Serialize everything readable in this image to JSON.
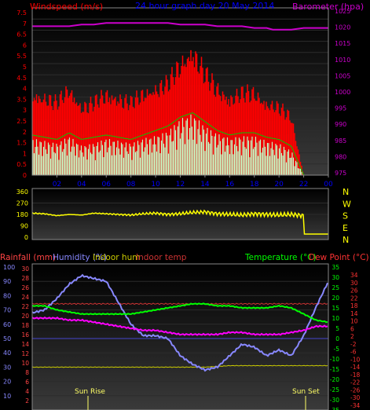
{
  "chart_data": [
    {
      "type": "bar",
      "title": "24 hour graph day  20 May 2014",
      "ylabel_left": "Windspeed (m/s)",
      "ylabel_right": "Barometer (hpa)",
      "colors": {
        "gust": "#ff0000",
        "speed": "#c8ffc8",
        "avg": "#00cc00",
        "barometer": "#cc00cc",
        "title": "#0000ff",
        "axis_left": "#ff0000",
        "axis_right": "#cc00cc",
        "xticks": "#0000ff"
      },
      "x_ticks": [
        "02",
        "04",
        "06",
        "08",
        "10",
        "12",
        "14",
        "16",
        "18",
        "20",
        "22",
        "00"
      ],
      "y_left_ticks": [
        "7.5",
        "7",
        "6.5",
        "6",
        "5.5",
        "5",
        "4.5",
        "4",
        "3.5",
        "3",
        "2.5",
        "2",
        "1.5",
        "1",
        "0.5",
        "0"
      ],
      "y_right_ticks": [
        "1025",
        "1020",
        "1015",
        "1010",
        "1005",
        "1000",
        "995",
        "990",
        "985",
        "980",
        "975"
      ],
      "ylim_left": [
        0,
        7.5
      ],
      "ylim_right": [
        975,
        1025
      ],
      "x_range_hours": [
        0,
        24
      ],
      "series": [
        {
          "name": "gust",
          "x": [
            0,
            1,
            2,
            3,
            4,
            5,
            6,
            7,
            8,
            9,
            10,
            11,
            12,
            13,
            14,
            15,
            16,
            17,
            18,
            19,
            20,
            21,
            22,
            23,
            24
          ],
          "values": [
            3.4,
            3.2,
            3.0,
            3.6,
            2.8,
            3.0,
            3.4,
            3.2,
            3.0,
            3.4,
            3.6,
            3.8,
            4.6,
            5.2,
            4.2,
            3.6,
            3.2,
            3.4,
            3.4,
            3.0,
            2.8,
            2.4,
            0,
            0,
            0
          ]
        },
        {
          "name": "speed",
          "x": [
            0,
            1,
            2,
            3,
            4,
            5,
            6,
            7,
            8,
            9,
            10,
            11,
            12,
            13,
            14,
            15,
            16,
            17,
            18,
            19,
            20,
            21,
            22,
            23,
            24
          ],
          "values": [
            1.5,
            1.4,
            1.3,
            1.6,
            1.2,
            1.3,
            1.5,
            1.4,
            1.3,
            1.5,
            1.6,
            1.8,
            2.3,
            2.5,
            2.0,
            1.7,
            1.5,
            1.6,
            1.6,
            1.4,
            1.3,
            1.0,
            0,
            0,
            0
          ]
        },
        {
          "name": "avg",
          "x": [
            0,
            1,
            2,
            3,
            4,
            5,
            6,
            7,
            8,
            9,
            10,
            11,
            12,
            13,
            14,
            15,
            16,
            17,
            18,
            19,
            20,
            21,
            22,
            23,
            24
          ],
          "values": [
            1.8,
            1.7,
            1.6,
            1.9,
            1.6,
            1.7,
            1.8,
            1.7,
            1.6,
            1.8,
            2.0,
            2.2,
            2.6,
            2.8,
            2.4,
            2.0,
            1.8,
            1.9,
            1.9,
            1.7,
            1.6,
            1.3,
            0,
            0,
            0
          ]
        },
        {
          "name": "barometer",
          "x": [
            0,
            2,
            3,
            4,
            5,
            6,
            7,
            8,
            9,
            10,
            11,
            12,
            13,
            14,
            15,
            16,
            17,
            18,
            19,
            19.5,
            20,
            21,
            22,
            23,
            24
          ],
          "values": [
            1019.5,
            1019.5,
            1019.5,
            1020,
            1020,
            1020.5,
            1020.5,
            1020.5,
            1020.5,
            1020.5,
            1020.5,
            1020,
            1020,
            1020,
            1019.5,
            1019.5,
            1019.5,
            1019,
            1019,
            1018.5,
            1018.5,
            1018.5,
            1019,
            1019,
            1019
          ]
        }
      ]
    },
    {
      "type": "line",
      "name": "Wind direction",
      "y_ticks": [
        "360",
        "270",
        "180",
        "90",
        "0"
      ],
      "ylim": [
        0,
        360
      ],
      "right_labels": [
        "N",
        "W",
        "S",
        "E",
        "N"
      ],
      "colors": {
        "line": "#ffff00",
        "axis": "#ffff00",
        "right": "#ffff00"
      },
      "x": [
        0,
        1,
        2,
        3,
        4,
        5,
        6,
        7,
        8,
        9,
        10,
        11,
        12,
        13,
        14,
        15,
        16,
        17,
        18,
        19,
        20,
        21,
        22,
        22.05,
        23,
        24
      ],
      "values": [
        190,
        185,
        170,
        180,
        175,
        190,
        185,
        180,
        175,
        185,
        190,
        180,
        185,
        195,
        200,
        185,
        180,
        175,
        185,
        180,
        175,
        180,
        170,
        25,
        25,
        25
      ]
    },
    {
      "type": "line",
      "title": "",
      "left_headers": [
        "Rainfall (mm)",
        "Humidity (%)",
        "Indoor hum",
        "Indoor temp"
      ],
      "right_headers": [
        "Temperature (°C)",
        "Dew Point (°C)"
      ],
      "colors": {
        "rain": "#ff4444",
        "humidity": "#8888ff",
        "indoor_hum": "#cccc00",
        "indoor_temp": "#cc3333",
        "temperature": "#00ff00",
        "dewpoint": "#ff00ff",
        "temp_axis": "#00ff00",
        "dew_axis": "#ff3333",
        "humidity_axis": "#8888ff",
        "rain_axis": "#ff4444"
      },
      "humidity_ticks": [
        "100",
        "90",
        "80",
        "70",
        "60",
        "50",
        "40",
        "30",
        "20",
        "10"
      ],
      "rain_ticks": [
        "30",
        "28",
        "26",
        "24",
        "22",
        "20",
        "18",
        "16",
        "14",
        "12",
        "10",
        "8",
        "6",
        "4",
        "2"
      ],
      "temp_ticks": [
        "35",
        "30",
        "25",
        "20",
        "15",
        "10",
        "5",
        "0",
        "-5",
        "-10",
        "-15",
        "-20",
        "-25",
        "-30",
        "-35"
      ],
      "dew_ticks": [
        "34",
        "30",
        "26",
        "22",
        "18",
        "14",
        "10",
        "6",
        "2",
        "-2",
        "-6",
        "-10",
        "-14",
        "-18",
        "-22",
        "-26",
        "-30",
        "-34"
      ],
      "annotations": [
        "Sun Rise",
        "Sun Set"
      ],
      "series": [
        {
          "name": "Temperature",
          "x": [
            0,
            1,
            2,
            3,
            4,
            5,
            6,
            7,
            8,
            9,
            10,
            11,
            12,
            13,
            14,
            15,
            16,
            17,
            18,
            19,
            20,
            21,
            22,
            23,
            24
          ],
          "values": [
            16,
            16,
            14,
            13,
            12,
            12,
            12,
            12,
            12,
            13,
            14,
            15,
            16,
            17,
            17,
            16,
            16,
            15,
            15,
            15,
            16,
            15,
            12,
            9,
            8
          ]
        },
        {
          "name": "Dew Point",
          "x": [
            0,
            1,
            2,
            3,
            4,
            5,
            6,
            7,
            8,
            9,
            10,
            11,
            12,
            13,
            14,
            15,
            16,
            17,
            18,
            19,
            20,
            21,
            22,
            23,
            24
          ],
          "values": [
            10,
            10,
            10,
            9,
            9,
            8,
            7,
            6,
            5,
            4,
            4,
            3,
            2,
            2,
            2,
            2,
            3,
            3,
            2,
            2,
            2,
            3,
            4,
            6,
            6
          ]
        },
        {
          "name": "Humidity",
          "x": [
            0,
            1,
            2,
            3,
            4,
            5,
            6,
            7,
            8,
            9,
            10,
            11,
            12,
            13,
            14,
            15,
            16,
            17,
            18,
            19,
            20,
            21,
            22,
            23,
            24
          ],
          "values": [
            68,
            70,
            78,
            88,
            94,
            92,
            90,
            75,
            60,
            52,
            52,
            50,
            38,
            32,
            28,
            30,
            38,
            46,
            44,
            38,
            42,
            38,
            52,
            72,
            90
          ]
        },
        {
          "name": "Indoor hum",
          "x": [
            0,
            2,
            4,
            6,
            8,
            10,
            12,
            14,
            16,
            18,
            20,
            22,
            24
          ],
          "values": [
            30,
            30,
            30,
            30,
            30,
            30,
            30,
            30,
            31,
            31,
            31,
            31,
            31
          ]
        },
        {
          "name": "Indoor temp",
          "x": [
            0,
            2,
            4,
            6,
            8,
            10,
            12,
            14,
            16,
            18,
            20,
            22,
            24
          ],
          "values": [
            17,
            17,
            17,
            17,
            17,
            17,
            17,
            17,
            17,
            17,
            17,
            17,
            17
          ]
        }
      ]
    }
  ]
}
